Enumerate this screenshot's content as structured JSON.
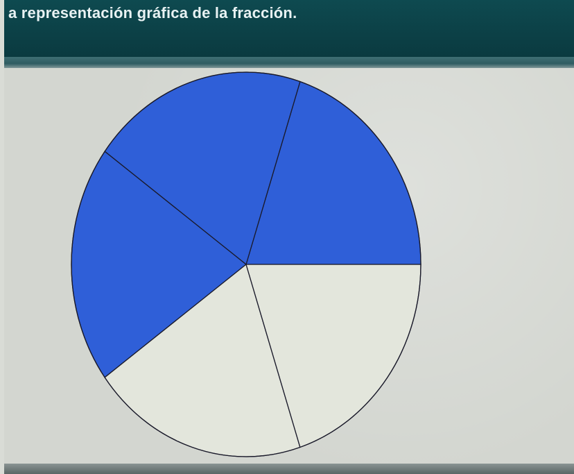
{
  "header": {
    "instruction": "a representación gráfica de la fracción."
  },
  "colors": {
    "header_bg": "#0c4147",
    "content_bg": "#d3d6d0",
    "shaded_fill": "#2f5fd8",
    "unshaded_fill": "#e3e6dc",
    "outline": "#1a1a2a"
  },
  "fraction_pie": {
    "total_parts": 5,
    "shaded_parts": 3,
    "parts": [
      {
        "shaded": true
      },
      {
        "shaded": true
      },
      {
        "shaded": true
      },
      {
        "shaded": false
      },
      {
        "shaded": false
      }
    ]
  }
}
